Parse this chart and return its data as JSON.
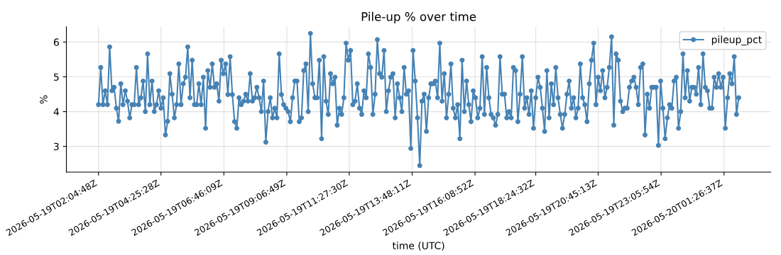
{
  "chart_data": {
    "type": "line",
    "title": "Pile-up % over time",
    "xlabel": "time (UTC)",
    "ylabel": "%",
    "x": [
      "2026-05-19T02:05",
      "2026-05-19T02:10",
      "2026-05-19T02:15",
      "2026-05-19T02:20",
      "2026-05-19T02:25",
      "2026-05-19T02:30",
      "2026-05-19T02:35",
      "2026-05-19T02:40",
      "2026-05-19T02:45",
      "2026-05-19T02:50",
      "2026-05-19T02:55",
      "2026-05-19T03:00",
      "2026-05-19T03:05",
      "2026-05-19T03:10",
      "2026-05-19T03:15",
      "2026-05-19T03:20",
      "2026-05-19T03:25",
      "2026-05-19T03:30",
      "2026-05-19T03:35",
      "2026-05-19T03:40",
      "2026-05-19T03:45",
      "2026-05-19T03:50",
      "2026-05-19T03:55",
      "2026-05-19T04:00",
      "2026-05-19T04:05",
      "2026-05-19T04:10",
      "2026-05-19T04:15",
      "2026-05-19T04:20",
      "2026-05-19T04:25",
      "2026-05-19T04:30",
      "2026-05-19T04:35",
      "2026-05-19T04:40",
      "2026-05-19T04:45",
      "2026-05-19T04:50",
      "2026-05-19T04:55",
      "2026-05-19T05:00",
      "2026-05-19T05:05",
      "2026-05-19T05:10",
      "2026-05-19T05:15",
      "2026-05-19T05:20",
      "2026-05-19T05:25",
      "2026-05-19T05:30",
      "2026-05-19T05:35",
      "2026-05-19T05:40",
      "2026-05-19T05:45",
      "2026-05-19T05:50",
      "2026-05-19T05:55",
      "2026-05-19T06:00",
      "2026-05-19T06:05",
      "2026-05-19T06:10",
      "2026-05-19T06:15",
      "2026-05-19T06:20",
      "2026-05-19T06:25",
      "2026-05-19T06:30",
      "2026-05-19T06:35",
      "2026-05-19T06:40",
      "2026-05-19T06:45",
      "2026-05-19T06:50",
      "2026-05-19T06:55",
      "2026-05-19T07:00",
      "2026-05-19T07:05",
      "2026-05-19T07:10",
      "2026-05-19T07:15",
      "2026-05-19T07:20",
      "2026-05-19T07:25",
      "2026-05-19T07:30",
      "2026-05-19T07:35",
      "2026-05-19T07:40",
      "2026-05-19T07:45",
      "2026-05-19T07:50",
      "2026-05-19T07:55",
      "2026-05-19T08:00",
      "2026-05-19T08:05",
      "2026-05-19T08:10",
      "2026-05-19T08:15",
      "2026-05-19T08:20",
      "2026-05-19T08:25",
      "2026-05-19T08:30",
      "2026-05-19T08:35",
      "2026-05-19T08:40",
      "2026-05-19T08:45",
      "2026-05-19T08:50",
      "2026-05-19T08:55",
      "2026-05-19T09:00",
      "2026-05-19T09:05",
      "2026-05-19T09:10",
      "2026-05-19T09:15",
      "2026-05-19T09:20",
      "2026-05-19T09:25",
      "2026-05-19T09:30",
      "2026-05-19T09:35",
      "2026-05-19T09:40",
      "2026-05-19T09:45",
      "2026-05-19T09:50",
      "2026-05-19T09:55",
      "2026-05-19T10:00",
      "2026-05-19T10:05",
      "2026-05-19T10:10",
      "2026-05-19T10:15",
      "2026-05-19T10:20",
      "2026-05-19T10:25",
      "2026-05-19T10:30",
      "2026-05-19T10:35",
      "2026-05-19T10:40",
      "2026-05-19T10:45",
      "2026-05-19T10:50",
      "2026-05-19T10:55",
      "2026-05-19T11:00",
      "2026-05-19T11:05",
      "2026-05-19T11:10",
      "2026-05-19T11:15",
      "2026-05-19T11:20",
      "2026-05-19T11:25",
      "2026-05-19T11:30",
      "2026-05-19T11:35",
      "2026-05-19T11:40",
      "2026-05-19T11:45",
      "2026-05-19T11:50",
      "2026-05-19T11:55",
      "2026-05-19T12:00",
      "2026-05-19T12:05",
      "2026-05-19T12:10",
      "2026-05-19T12:15",
      "2026-05-19T12:20",
      "2026-05-19T12:25",
      "2026-05-19T12:30",
      "2026-05-19T12:35",
      "2026-05-19T12:40",
      "2026-05-19T12:45",
      "2026-05-19T12:50",
      "2026-05-19T12:55",
      "2026-05-19T13:00",
      "2026-05-19T13:05",
      "2026-05-19T13:10",
      "2026-05-19T13:15",
      "2026-05-19T13:20",
      "2026-05-19T13:25",
      "2026-05-19T13:30",
      "2026-05-19T13:35",
      "2026-05-19T13:40",
      "2026-05-19T13:45",
      "2026-05-19T13:50",
      "2026-05-19T13:55",
      "2026-05-19T14:00",
      "2026-05-19T14:05",
      "2026-05-19T14:10",
      "2026-05-19T14:15",
      "2026-05-19T14:20",
      "2026-05-19T14:25",
      "2026-05-19T14:30",
      "2026-05-19T14:35",
      "2026-05-19T14:40",
      "2026-05-19T14:45",
      "2026-05-19T14:50",
      "2026-05-19T14:55",
      "2026-05-19T15:00",
      "2026-05-19T15:05",
      "2026-05-19T15:10",
      "2026-05-19T15:15",
      "2026-05-19T15:20",
      "2026-05-19T15:25",
      "2026-05-19T15:30",
      "2026-05-19T15:35",
      "2026-05-19T15:40",
      "2026-05-19T15:45",
      "2026-05-19T15:50",
      "2026-05-19T15:55",
      "2026-05-19T16:00",
      "2026-05-19T16:05",
      "2026-05-19T16:10",
      "2026-05-19T16:15",
      "2026-05-19T16:20",
      "2026-05-19T16:25",
      "2026-05-19T16:30",
      "2026-05-19T16:35",
      "2026-05-19T16:40",
      "2026-05-19T16:45",
      "2026-05-19T16:50",
      "2026-05-19T16:55",
      "2026-05-19T17:00",
      "2026-05-19T17:05",
      "2026-05-19T17:10",
      "2026-05-19T17:15",
      "2026-05-19T17:20",
      "2026-05-19T17:25",
      "2026-05-19T17:30",
      "2026-05-19T17:35",
      "2026-05-19T17:40",
      "2026-05-19T17:45",
      "2026-05-19T17:50",
      "2026-05-19T17:55",
      "2026-05-19T18:00",
      "2026-05-19T18:05",
      "2026-05-19T18:10",
      "2026-05-19T18:15",
      "2026-05-19T18:20",
      "2026-05-19T18:25",
      "2026-05-19T18:30",
      "2026-05-19T18:35",
      "2026-05-19T18:40",
      "2026-05-19T18:45",
      "2026-05-19T18:50",
      "2026-05-19T18:55",
      "2026-05-19T19:00",
      "2026-05-19T19:05",
      "2026-05-19T19:10",
      "2026-05-19T19:15",
      "2026-05-19T19:20",
      "2026-05-19T19:25",
      "2026-05-19T19:30",
      "2026-05-19T19:35",
      "2026-05-19T19:40",
      "2026-05-19T19:45",
      "2026-05-19T19:50",
      "2026-05-19T19:55",
      "2026-05-19T20:00",
      "2026-05-19T20:05",
      "2026-05-19T20:10",
      "2026-05-19T20:15",
      "2026-05-19T20:20",
      "2026-05-19T20:25",
      "2026-05-19T20:30",
      "2026-05-19T20:35",
      "2026-05-19T20:40",
      "2026-05-19T20:45",
      "2026-05-19T20:50",
      "2026-05-19T20:55",
      "2026-05-19T21:00",
      "2026-05-19T21:05",
      "2026-05-19T21:10",
      "2026-05-19T21:15",
      "2026-05-19T21:20",
      "2026-05-19T21:25",
      "2026-05-19T21:30",
      "2026-05-19T21:35",
      "2026-05-19T21:40",
      "2026-05-19T21:45",
      "2026-05-19T21:50",
      "2026-05-19T21:55",
      "2026-05-19T22:00",
      "2026-05-19T22:05",
      "2026-05-19T22:10",
      "2026-05-19T22:15",
      "2026-05-19T22:20",
      "2026-05-19T22:25",
      "2026-05-19T22:30",
      "2026-05-19T22:35",
      "2026-05-19T22:40",
      "2026-05-19T22:45",
      "2026-05-19T22:50",
      "2026-05-19T22:55",
      "2026-05-19T23:00",
      "2026-05-19T23:05",
      "2026-05-19T23:10",
      "2026-05-19T23:15",
      "2026-05-19T23:20",
      "2026-05-19T23:25",
      "2026-05-19T23:30",
      "2026-05-19T23:35",
      "2026-05-19T23:40",
      "2026-05-19T23:45",
      "2026-05-19T23:50",
      "2026-05-19T23:55",
      "2026-05-20T00:00",
      "2026-05-20T00:05",
      "2026-05-20T00:10",
      "2026-05-20T00:15",
      "2026-05-20T00:20",
      "2026-05-20T00:25",
      "2026-05-20T00:30",
      "2026-05-20T00:35",
      "2026-05-20T00:40",
      "2026-05-20T00:45",
      "2026-05-20T00:50",
      "2026-05-20T00:55",
      "2026-05-20T01:00",
      "2026-05-20T01:05",
      "2026-05-20T01:10",
      "2026-05-20T01:15",
      "2026-05-20T01:20",
      "2026-05-20T01:25",
      "2026-05-20T01:30",
      "2026-05-20T01:35",
      "2026-05-20T01:40",
      "2026-05-20T01:45",
      "2026-05-20T01:50",
      "2026-05-20T01:55",
      "2026-05-20T02:00"
    ],
    "series": [
      {
        "name": "pileup_pct",
        "color": "#4682b4",
        "values": [
          4.2,
          5.27,
          4.2,
          4.6,
          4.2,
          5.86,
          4.6,
          4.7,
          4.1,
          3.72,
          4.8,
          4.2,
          4.6,
          4.3,
          3.82,
          4.2,
          4.2,
          5.27,
          4.2,
          4.4,
          4.88,
          4.0,
          5.66,
          4.2,
          4.88,
          4.0,
          4.2,
          4.6,
          4.1,
          4.4,
          3.33,
          3.72,
          5.09,
          4.5,
          3.82,
          4.2,
          5.37,
          4.2,
          4.8,
          4.99,
          5.86,
          4.4,
          5.48,
          4.2,
          4.2,
          4.8,
          4.2,
          4.99,
          3.52,
          5.18,
          4.7,
          5.37,
          4.7,
          4.8,
          4.3,
          5.48,
          5.09,
          5.37,
          4.49,
          5.58,
          4.49,
          3.71,
          3.52,
          4.4,
          4.2,
          4.3,
          4.5,
          4.3,
          5.09,
          4.3,
          4.4,
          4.7,
          4.4,
          4.0,
          4.88,
          3.12,
          4.0,
          4.4,
          3.82,
          4.1,
          3.82,
          5.66,
          4.49,
          4.2,
          4.1,
          4.0,
          3.71,
          4.4,
          4.88,
          4.88,
          3.71,
          3.82,
          5.18,
          5.37,
          4.0,
          6.25,
          4.8,
          4.4,
          4.4,
          5.48,
          3.22,
          5.58,
          4.3,
          3.92,
          5.09,
          4.8,
          4.99,
          3.61,
          4.1,
          3.92,
          4.4,
          5.97,
          5.48,
          5.76,
          4.2,
          4.3,
          4.8,
          4.1,
          3.92,
          4.6,
          4.4,
          5.66,
          5.27,
          3.92,
          4.5,
          6.07,
          5.09,
          4.99,
          5.76,
          4.0,
          4.6,
          4.99,
          5.09,
          3.82,
          4.8,
          4.4,
          4.0,
          5.27,
          4.5,
          4.6,
          2.94,
          5.76,
          4.88,
          3.82,
          2.45,
          4.3,
          4.5,
          3.43,
          4.4,
          4.8,
          4.8,
          4.88,
          4.4,
          5.97,
          4.3,
          5.09,
          3.82,
          4.5,
          5.37,
          4.1,
          3.82,
          4.2,
          3.22,
          5.48,
          4.0,
          4.88,
          4.2,
          3.71,
          4.6,
          4.4,
          3.82,
          4.1,
          5.58,
          3.92,
          5.27,
          4.4,
          3.92,
          3.82,
          3.61,
          3.92,
          5.58,
          4.5,
          4.5,
          3.82,
          4.0,
          3.82,
          5.27,
          5.18,
          3.71,
          4.5,
          5.58,
          4.1,
          4.4,
          3.92,
          4.6,
          3.52,
          4.4,
          4.99,
          4.7,
          4.1,
          3.43,
          5.18,
          3.82,
          4.8,
          4.2,
          5.27,
          4.4,
          3.92,
          3.52,
          3.92,
          4.5,
          4.88,
          4.1,
          4.4,
          3.82,
          4.1,
          5.37,
          4.4,
          4.2,
          3.71,
          4.8,
          5.48,
          5.97,
          4.2,
          4.99,
          4.6,
          5.18,
          4.4,
          4.7,
          5.27,
          6.15,
          3.61,
          5.66,
          5.48,
          4.3,
          4.0,
          4.1,
          4.1,
          4.7,
          4.88,
          4.99,
          4.7,
          4.2,
          5.27,
          5.37,
          3.33,
          4.5,
          4.1,
          4.7,
          4.7,
          4.7,
          3.03,
          4.88,
          4.1,
          3.22,
          3.82,
          4.2,
          4.1,
          4.88,
          4.99,
          3.52,
          4.0,
          5.66,
          4.4,
          5.18,
          4.3,
          4.7,
          4.7,
          4.5,
          5.27,
          4.2,
          5.66,
          4.7,
          4.6,
          4.1,
          4.1,
          4.99,
          4.7,
          5.09,
          4.7,
          4.99,
          3.52,
          4.4,
          5.09,
          4.8,
          5.58,
          3.92,
          4.4
        ]
      }
    ],
    "xlim": [
      "2026-05-19T00:53",
      "2026-05-20T03:12"
    ],
    "xticks": [
      {
        "value": "2026-05-19T02:05",
        "label": "2026-05-19T02:04:48Z"
      },
      {
        "value": "2026-05-19T04:25",
        "label": "2026-05-19T04:25:28Z"
      },
      {
        "value": "2026-05-19T06:46",
        "label": "2026-05-19T06:46:09Z"
      },
      {
        "value": "2026-05-19T09:07",
        "label": "2026-05-19T09:06:49Z"
      },
      {
        "value": "2026-05-19T11:27",
        "label": "2026-05-19T11:27:30Z"
      },
      {
        "value": "2026-05-19T13:48",
        "label": "2026-05-19T13:48:11Z"
      },
      {
        "value": "2026-05-19T16:09",
        "label": "2026-05-19T16:08:52Z"
      },
      {
        "value": "2026-05-19T18:25",
        "label": "2026-05-19T18:24:32Z"
      },
      {
        "value": "2026-05-19T20:45",
        "label": "2026-05-19T20:45:13Z"
      },
      {
        "value": "2026-05-19T23:06",
        "label": "2026-05-19T23:05:54Z"
      },
      {
        "value": "2026-05-20T01:27",
        "label": "2026-05-20T01:26:37Z"
      }
    ],
    "ylim": [
      2.26,
      6.44
    ],
    "yticks": [
      3,
      4,
      5,
      6
    ],
    "grid": true,
    "legend": "top right",
    "marker": "circle",
    "line_style": "solid"
  }
}
